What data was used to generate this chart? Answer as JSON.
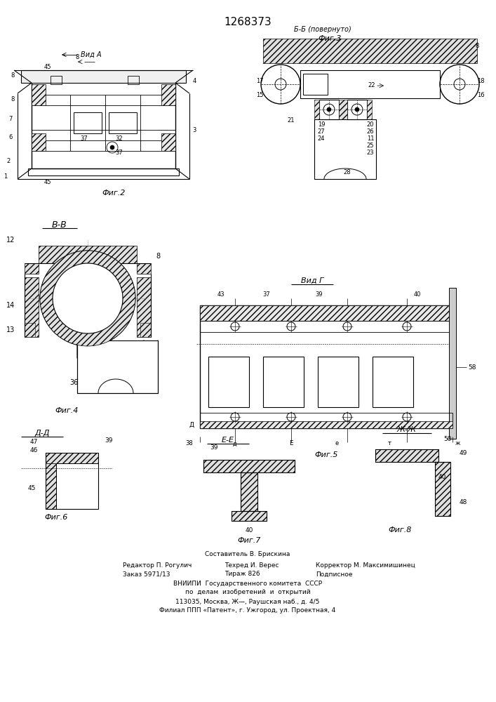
{
  "patent_number": "1268373",
  "background_color": "#ffffff",
  "line_color": "#000000",
  "fig_width": 7.07,
  "fig_height": 10.0,
  "footer_line0": "Составитель В. Брискина",
  "footer_line1a": "Редактор П. Рогулич",
  "footer_line1b": "Техред И. Верес",
  "footer_line1c": "Корректор М. Максимишинец",
  "footer_line2a": "Заказ 5971/13",
  "footer_line2b": "Тираж 826",
  "footer_line2c": "Подписное",
  "footer_line3": "ВНИИПИ  Государственного комитета  СССР",
  "footer_line4": "по  делам  изобретений  и  открытий",
  "footer_line5": "113035, Москва, Ж—̵̵, Раушская наб., д. 4/5",
  "footer_line6": "Филиал ППП «Патент», г. Ужгород, ул. Проектная, 4"
}
